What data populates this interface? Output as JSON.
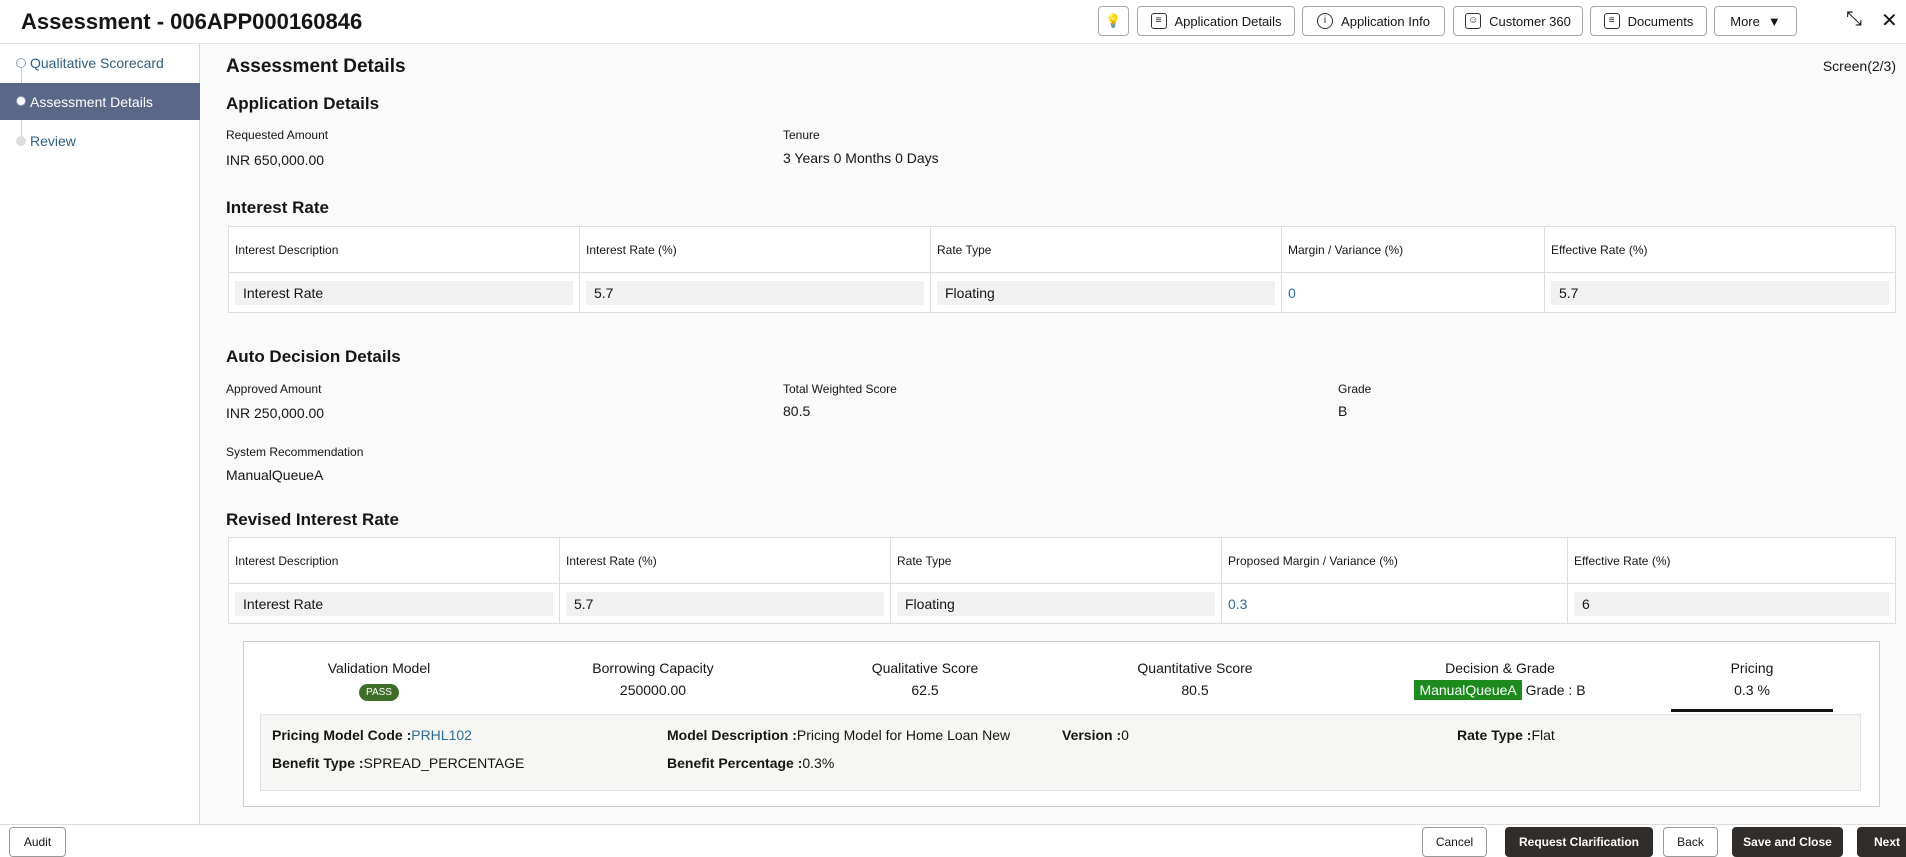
{
  "header": {
    "title": "Assessment - 006APP000160846",
    "buttons": [
      "Application Details",
      "Application Info",
      "Customer 360",
      "Documents",
      "More"
    ]
  },
  "sidebar": {
    "items": [
      {
        "label": "Qualitative Scorecard"
      },
      {
        "label": "Assessment Details"
      },
      {
        "label": "Review"
      }
    ]
  },
  "main": {
    "title": "Assessment Details",
    "screen": "Screen(2/3)",
    "application": {
      "heading": "Application Details",
      "requested_label": "Requested Amount",
      "requested_value": "INR 650,000.00",
      "tenure_label": "Tenure",
      "tenure_value": "3 Years 0 Months 0 Days"
    },
    "interest": {
      "heading": "Interest Rate",
      "columns": [
        "Interest Description",
        "Interest Rate (%)",
        "Rate Type",
        "Margin / Variance (%)",
        "Effective Rate (%)"
      ],
      "row": [
        "Interest Rate",
        "5.7",
        "Floating",
        "0",
        "5.7"
      ]
    },
    "auto": {
      "heading": "Auto Decision Details",
      "approved_label": "Approved Amount",
      "approved_value": "INR 250,000.00",
      "score_label": "Total Weighted Score",
      "score_value": "80.5",
      "grade_label": "Grade",
      "grade_value": "B",
      "rec_label": "System Recommendation",
      "rec_value": "ManualQueueA"
    },
    "revised": {
      "heading": "Revised Interest Rate",
      "columns": [
        "Interest Description",
        "Interest Rate (%)",
        "Rate Type",
        "Proposed Margin / Variance (%)",
        "Effective Rate (%)"
      ],
      "row": [
        "Interest Rate",
        "5.7",
        "Floating",
        "0.3",
        "6"
      ]
    },
    "summary": {
      "validation_label": "Validation Model",
      "validation_value": "PASS",
      "borrowing_label": "Borrowing Capacity",
      "borrowing_value": "250000.00",
      "qual_label": "Qualitative Score",
      "qual_value": "62.5",
      "quant_label": "Quantitative Score",
      "quant_value": "80.5",
      "decision_label": "Decision & Grade",
      "decision_value": "ManualQueueA",
      "grade_value": "Grade : B",
      "pricing_label": "Pricing",
      "pricing_value": "0.3 %"
    },
    "pricing": {
      "code_label": "Pricing Model Code :",
      "code_value": "PRHL102",
      "desc_label": "Model Description :",
      "desc_value": "Pricing Model for Home Loan New",
      "version_label": "Version :",
      "version_value": "0",
      "ratetype_label": "Rate Type :",
      "ratetype_value": "Flat",
      "benefit_label": "Benefit Type :",
      "benefit_value": "SPREAD_PERCENTAGE",
      "pct_label": "Benefit Percentage :",
      "pct_value": "0.3%"
    }
  },
  "footer": {
    "audit": "Audit",
    "cancel": "Cancel",
    "request": "Request Clarification",
    "back": "Back",
    "save": "Save and Close",
    "next": "Next"
  },
  "colors": {
    "accent": "#5b6786",
    "pass": "#3f6e2b",
    "decision": "#1d8a1d",
    "dark_button": "#312d2a"
  }
}
